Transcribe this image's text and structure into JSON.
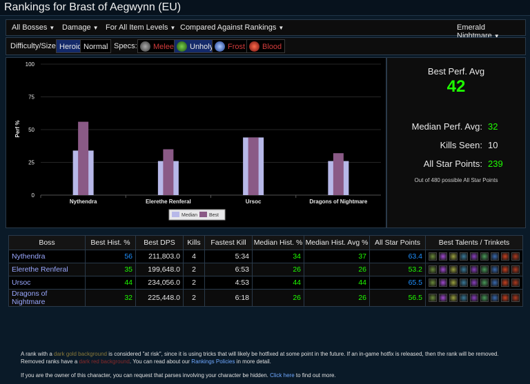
{
  "title": "Rankings for Brast of Aegwynn (EU)",
  "toolbar": {
    "bosses": "All Bosses",
    "metric": "Damage",
    "item_levels": "For All Item Levels",
    "compare": "Compared Against Rankings",
    "zone": "Emerald Nightmare"
  },
  "filters": {
    "difficulty_label": "Difficulty/Size:",
    "heroic": "Heroic",
    "normal": "Normal",
    "specs_label": "Specs:",
    "specs": [
      {
        "name": "Melee",
        "color": "#d23b3b",
        "icon": "sword-icon"
      },
      {
        "name": "Unholy",
        "color": "#e8e8e8",
        "icon": "skull-icon"
      },
      {
        "name": "Frost",
        "color": "#d23b3b",
        "icon": "frost-icon"
      },
      {
        "name": "Blood",
        "color": "#d23b3b",
        "icon": "blood-icon"
      }
    ]
  },
  "chart_data": {
    "type": "bar",
    "categories": [
      "Nythendra",
      "Elerethe Renferal",
      "Ursoc",
      "Dragons of Nightmare"
    ],
    "series": [
      {
        "name": "Median",
        "values": [
          34,
          26,
          44,
          26
        ],
        "color": "#b7b8e8"
      },
      {
        "name": "Best",
        "values": [
          56,
          35,
          44,
          32
        ],
        "color": "#8a5a86"
      }
    ],
    "ylabel": "Perf %",
    "ylim": [
      0,
      100
    ],
    "yticks": [
      0,
      25,
      50,
      75,
      100
    ],
    "legend": "bottom"
  },
  "stats": {
    "best_label": "Best Perf. Avg",
    "best_value": "42",
    "median_label": "Median Perf. Avg:",
    "median_value": "32",
    "kills_label": "Kills Seen:",
    "kills_value": "10",
    "star_label": "All Star Points:",
    "star_value": "239",
    "note": "Out of 480 possible All Star Points"
  },
  "table": {
    "headers": [
      "Boss",
      "Best Hist. %",
      "Best DPS",
      "Kills",
      "Fastest Kill",
      "Median Hist. %",
      "Median Hist. Avg %",
      "All Star Points",
      "Best Talents / Trinkets"
    ],
    "rows": [
      {
        "boss": "Nythendra",
        "best_hist": "56",
        "best_dps": "211,803.0",
        "kills": "4",
        "fastest": "5:34",
        "median_hist": "34",
        "median_avg": "37",
        "star": "63.4"
      },
      {
        "boss": "Elerethe Renferal",
        "best_hist": "35",
        "best_dps": "199,648.0",
        "kills": "2",
        "fastest": "6:53",
        "median_hist": "26",
        "median_avg": "26",
        "star": "53.2"
      },
      {
        "boss": "Ursoc",
        "best_hist": "44",
        "best_dps": "234,056.0",
        "kills": "2",
        "fastest": "4:53",
        "median_hist": "44",
        "median_avg": "44",
        "star": "65.5"
      },
      {
        "boss": "Dragons of Nightmare",
        "best_hist": "32",
        "best_dps": "225,448.0",
        "kills": "2",
        "fastest": "6:18",
        "median_hist": "26",
        "median_avg": "26",
        "star": "56.5"
      }
    ],
    "talent_colors": [
      "#6a8a3a",
      "#a04ad0",
      "#9aa040",
      "#3a7a9a",
      "#8a40c0",
      "#4a9a5a",
      "#3a6ab0",
      "#c84020",
      "#b03a20"
    ]
  },
  "footer": {
    "p1_a": "A rank with a ",
    "p1_gold": "dark gold background",
    "p1_b": " is considered \"at risk\", since it is using tricks that will likely be hotfixed at some point in the future. If an in-game hotfix is released, then the rank will be removed.",
    "p1_c": "Removed ranks have a ",
    "p1_red": "dark red background",
    "p1_d": ". You can read about our ",
    "p1_link": "Rankings Policies",
    "p1_e": " in more detail.",
    "p2_a": "If you are the owner of this character, you can request that parses involving your character be hidden. ",
    "p2_link": "Click here",
    "p2_b": " to find out more."
  }
}
